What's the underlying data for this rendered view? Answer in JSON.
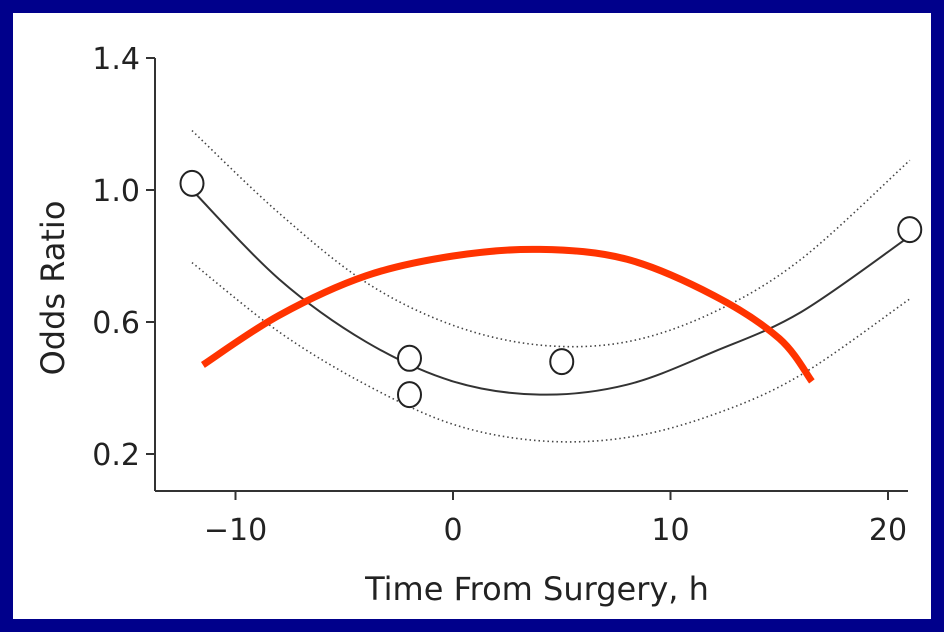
{
  "chart_data": {
    "type": "line",
    "title": "",
    "xlabel": "Time From Surgery, h",
    "ylabel": "Odds Ratio",
    "xlim": [
      -13.5,
      21.5
    ],
    "ylim": [
      0.1,
      1.4
    ],
    "xticks": [
      -10,
      0,
      10,
      20
    ],
    "xtick_labels": [
      "−10",
      "0",
      "10",
      "20"
    ],
    "yticks": [
      0.2,
      0.6,
      1.0,
      1.4
    ],
    "ytick_labels": [
      "0.2",
      "0.6",
      "1.0",
      "1.4"
    ],
    "grid": false,
    "points": [
      {
        "x": -12,
        "y": 1.02
      },
      {
        "x": -2,
        "y": 0.49
      },
      {
        "x": -2,
        "y": 0.38
      },
      {
        "x": 5,
        "y": 0.48
      },
      {
        "x": 21,
        "y": 0.88
      }
    ],
    "series": [
      {
        "style": "solid",
        "x": [
          -12,
          -8,
          -4,
          0,
          4,
          8,
          12,
          16,
          21
        ],
        "y": [
          1.0,
          0.73,
          0.54,
          0.42,
          0.38,
          0.41,
          0.51,
          0.63,
          0.86
        ]
      },
      {
        "style": "dotted",
        "x": [
          -12,
          -8,
          -4,
          0,
          4,
          8,
          12,
          16,
          21
        ],
        "y": [
          1.18,
          0.93,
          0.72,
          0.59,
          0.53,
          0.54,
          0.63,
          0.79,
          1.09
        ]
      },
      {
        "style": "dotted",
        "x": [
          -12,
          -8,
          -4,
          0,
          4,
          8,
          12,
          16,
          21
        ],
        "y": [
          0.78,
          0.57,
          0.41,
          0.29,
          0.24,
          0.25,
          0.32,
          0.44,
          0.67
        ]
      },
      {
        "style": "overlay",
        "color": "#ff3300",
        "x": [
          -11.5,
          -8,
          -4,
          0,
          4,
          8,
          12,
          15,
          16.5
        ],
        "y": [
          0.47,
          0.62,
          0.74,
          0.8,
          0.82,
          0.79,
          0.68,
          0.55,
          0.42
        ]
      }
    ]
  }
}
